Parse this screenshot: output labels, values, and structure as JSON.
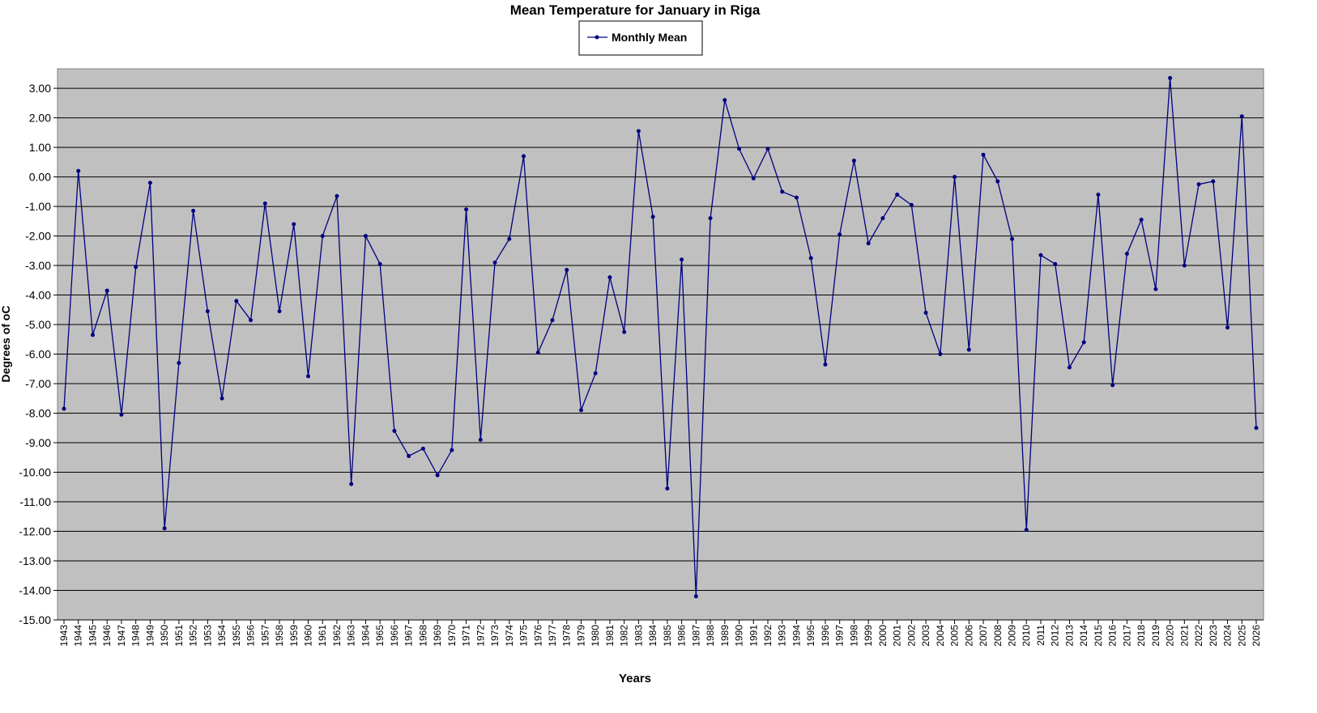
{
  "chart_data": {
    "type": "line",
    "title": "Mean Temperature for January in Riga",
    "x_label": "Years",
    "y_label": "Degrees of  oC",
    "categories": [
      "1943",
      "1944",
      "1945",
      "1946",
      "1947",
      "1948",
      "1949",
      "1950",
      "1951",
      "1952",
      "1953",
      "1954",
      "1955",
      "1956",
      "1957",
      "1958",
      "1959",
      "1960",
      "1961",
      "1962",
      "1963",
      "1964",
      "1965",
      "1966",
      "1967",
      "1968",
      "1969",
      "1970",
      "1971",
      "1972",
      "1973",
      "1974",
      "1975",
      "1976",
      "1977",
      "1978",
      "1979",
      "1980",
      "1981",
      "1982",
      "1983",
      "1984",
      "1985",
      "1986",
      "1987",
      "1988",
      "1989",
      "1990",
      "1991",
      "1992",
      "1993",
      "1994",
      "1995",
      "1996",
      "1997",
      "1998",
      "1999",
      "2000",
      "2001",
      "2002",
      "2003",
      "2004",
      "2005",
      "2006",
      "2007",
      "2008",
      "2009",
      "2010",
      "2011",
      "2012",
      "2013",
      "2014",
      "2015",
      "2016",
      "2017",
      "2018",
      "2019",
      "2020",
      "2021",
      "2022",
      "2023",
      "2024",
      "2025",
      "2026"
    ],
    "series": [
      {
        "name": "Monthly Mean",
        "color": "#000080",
        "values": [
          -7.85,
          0.2,
          -5.35,
          -3.85,
          -8.05,
          -3.05,
          -0.2,
          -11.9,
          -6.3,
          -1.15,
          -4.55,
          -7.5,
          -4.2,
          -4.85,
          -0.9,
          -4.55,
          -1.6,
          -6.75,
          -2.0,
          -0.65,
          -10.4,
          -2.0,
          -2.95,
          -8.6,
          -9.45,
          -9.2,
          -10.1,
          -9.25,
          -1.1,
          -8.9,
          -2.9,
          -2.1,
          0.7,
          -5.95,
          -4.85,
          -3.15,
          -7.9,
          -6.65,
          -3.4,
          -5.25,
          1.55,
          -1.35,
          -10.55,
          -2.8,
          -14.2,
          -1.4,
          2.6,
          0.95,
          -0.05,
          0.95,
          -0.5,
          -0.7,
          -2.75,
          -6.35,
          -1.95,
          0.55,
          -2.25,
          -1.4,
          -0.6,
          -0.95,
          -4.6,
          -6.0,
          0.0,
          -5.85,
          0.75,
          -0.15,
          -2.1,
          -11.95,
          -2.65,
          -2.95,
          -6.45,
          -5.6,
          -0.6,
          -7.05,
          -2.6,
          -1.45,
          -3.8,
          3.35,
          -3.0,
          -0.25,
          -0.15,
          -5.1,
          2.05,
          -8.5
        ]
      }
    ],
    "ylim": [
      -15,
      3.66
    ],
    "yticks": [
      {
        "value": -15,
        "label": "-15.00"
      },
      {
        "value": -14,
        "label": "-14.00"
      },
      {
        "value": -13,
        "label": "-13.00"
      },
      {
        "value": -12,
        "label": "-12.00"
      },
      {
        "value": -11,
        "label": "-11.00"
      },
      {
        "value": -10,
        "label": "-10.00"
      },
      {
        "value": -9,
        "label": "-9.00"
      },
      {
        "value": -8,
        "label": "-8.00"
      },
      {
        "value": -7,
        "label": "-7.00"
      },
      {
        "value": -6,
        "label": "-6.00"
      },
      {
        "value": -5,
        "label": "-5.00"
      },
      {
        "value": -4,
        "label": "-4.00"
      },
      {
        "value": -3,
        "label": "-3.00"
      },
      {
        "value": -2,
        "label": "-2.00"
      },
      {
        "value": -1,
        "label": "-1.00"
      },
      {
        "value": 0,
        "label": "0.00"
      },
      {
        "value": 1,
        "label": "1.00"
      },
      {
        "value": 2,
        "label": "2.00"
      },
      {
        "value": 3,
        "label": "3.00"
      }
    ],
    "grid": true,
    "legend": "top"
  }
}
